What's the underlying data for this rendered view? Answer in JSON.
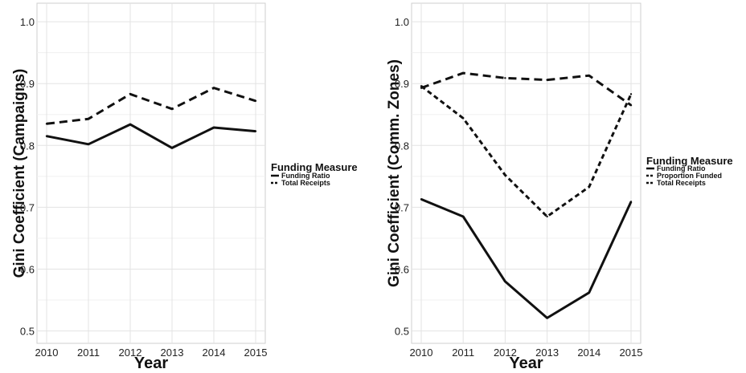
{
  "chart_data": [
    {
      "type": "line",
      "xlabel": "Year",
      "ylabel": "Gini Coefficient (Campaigns)",
      "ylim": [
        0.48,
        1.03
      ],
      "y_ticks": [
        "0.5",
        "0.6",
        "0.7",
        "0.8",
        "0.9",
        "1.0"
      ],
      "x": [
        "2010",
        "2011",
        "2012",
        "2013",
        "2014",
        "2015"
      ],
      "grid": true,
      "legend": {
        "title": "Funding Measure",
        "placement": "right"
      },
      "series": [
        {
          "name": "Funding Ratio",
          "style": "solid",
          "values": [
            0.815,
            0.802,
            0.834,
            0.796,
            0.829,
            0.823
          ]
        },
        {
          "name": "Total Receipts",
          "style": "dashed",
          "values": [
            0.835,
            0.843,
            0.883,
            0.859,
            0.893,
            0.872
          ]
        }
      ]
    },
    {
      "type": "line",
      "xlabel": "Year",
      "ylabel": "Gini Coefficient (Comm. Zones)",
      "ylim": [
        0.48,
        1.03
      ],
      "y_ticks": [
        "0.5",
        "0.6",
        "0.7",
        "0.8",
        "0.9",
        "1.0"
      ],
      "x": [
        "2010",
        "2011",
        "2012",
        "2013",
        "2014",
        "2015"
      ],
      "grid": true,
      "legend": {
        "title": "Funding Measure",
        "placement": "right"
      },
      "series": [
        {
          "name": "Funding Ratio",
          "style": "solid",
          "values": [
            0.713,
            0.685,
            0.58,
            0.521,
            0.562,
            0.709
          ]
        },
        {
          "name": "Proportion Funded",
          "style": "dotted",
          "values": [
            0.896,
            0.844,
            0.752,
            0.685,
            0.733,
            0.883
          ]
        },
        {
          "name": "Total Receipts",
          "style": "dashed",
          "values": [
            0.893,
            0.917,
            0.909,
            0.906,
            0.913,
            0.865
          ]
        }
      ]
    }
  ]
}
